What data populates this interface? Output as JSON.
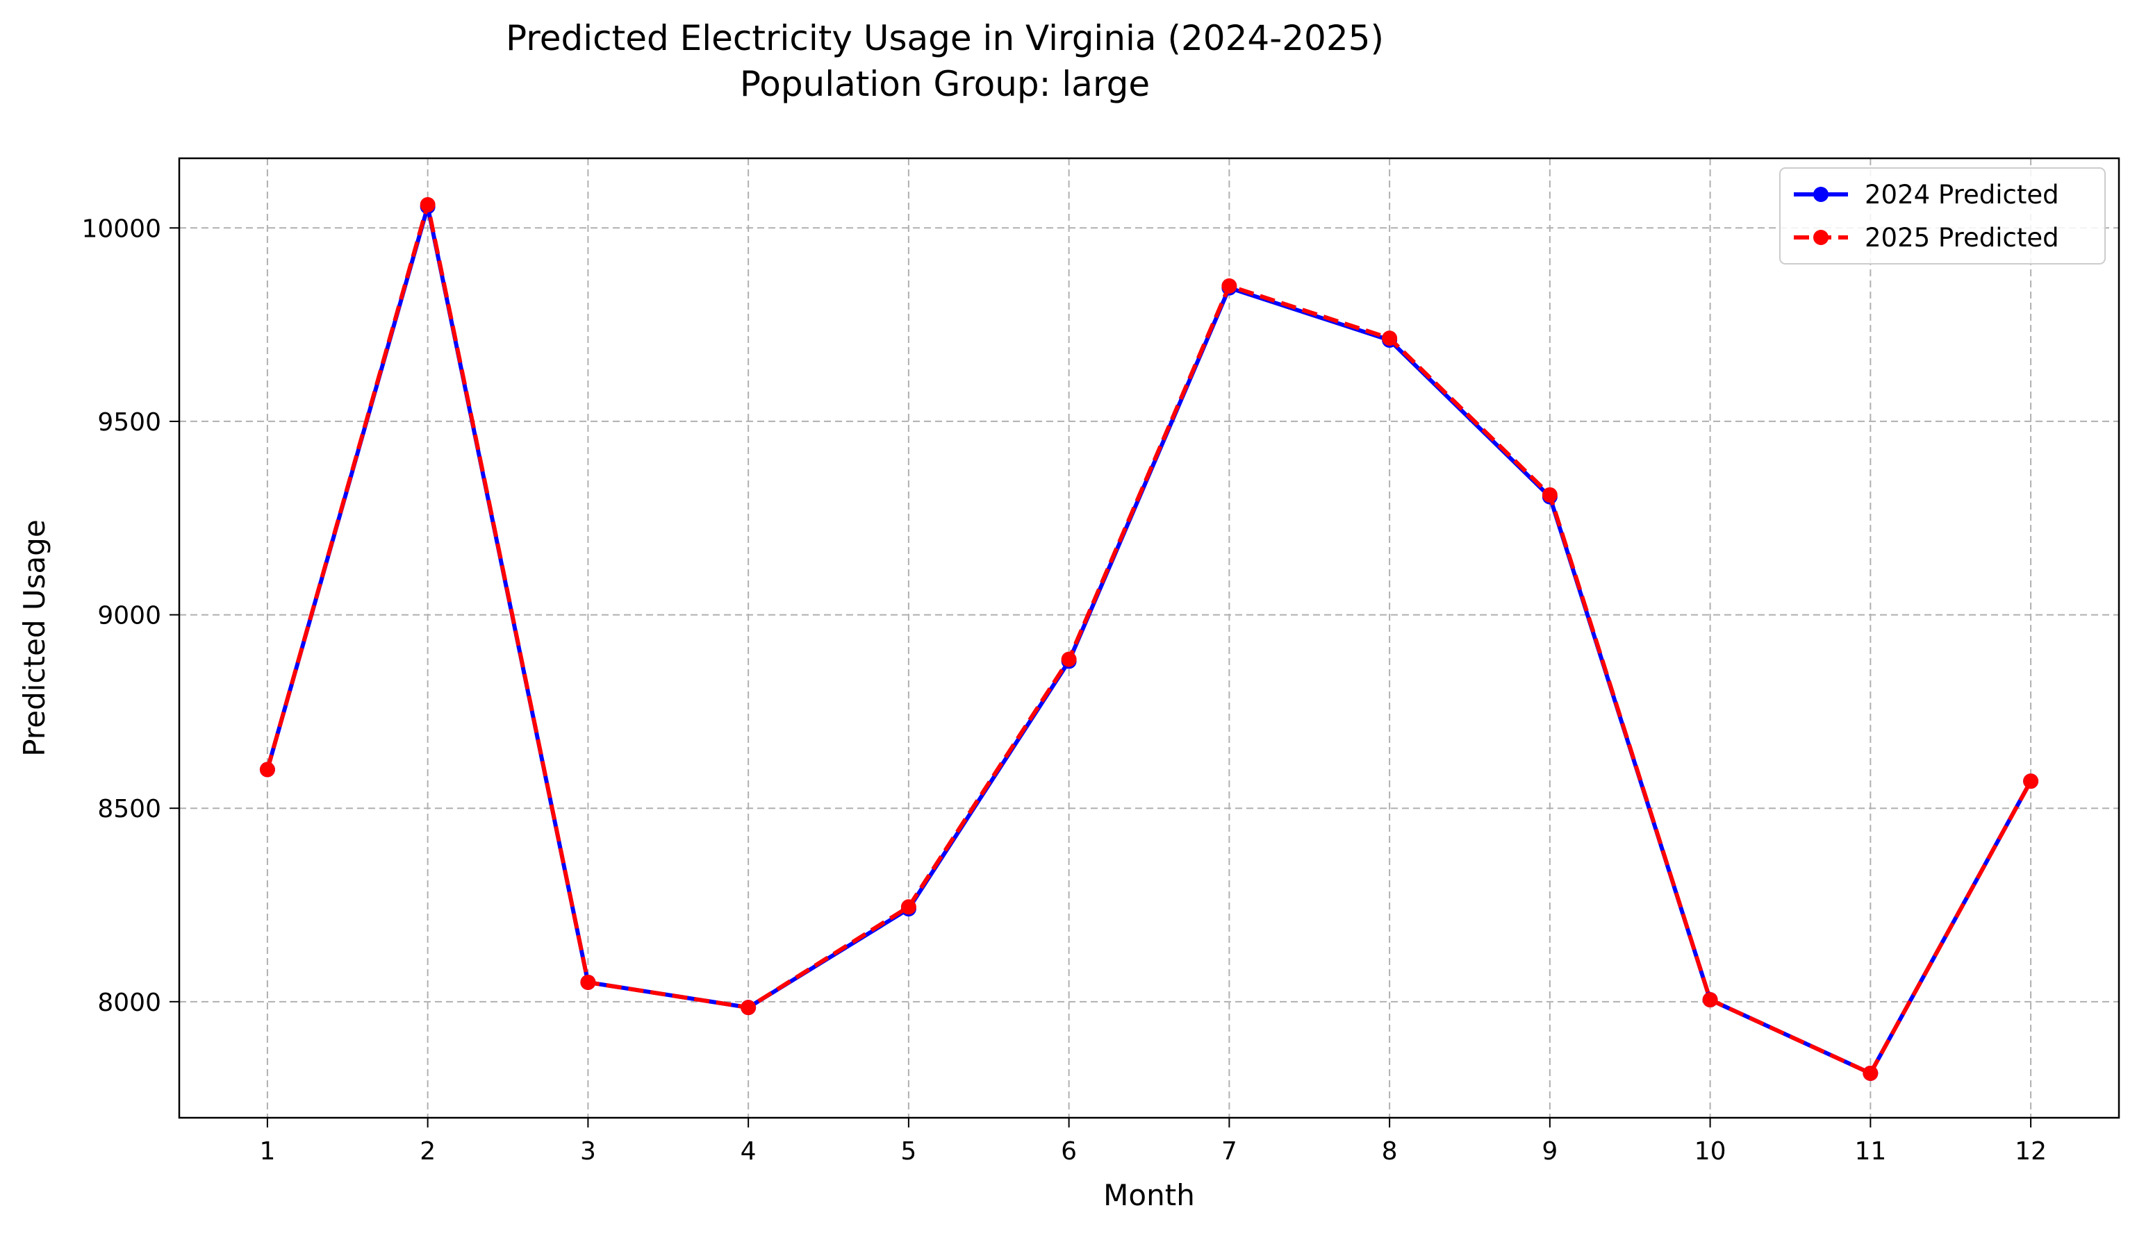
{
  "chart_data": {
    "type": "line",
    "title": "Predicted Electricity Usage in Virginia (2024-2025)",
    "subtitle": "Population Group: large",
    "xlabel": "Month",
    "ylabel": "Predicted Usage",
    "x": [
      1,
      2,
      3,
      4,
      5,
      6,
      7,
      8,
      9,
      10,
      11,
      12
    ],
    "xlim": [
      0.45,
      12.55
    ],
    "ylim": [
      7700,
      10180
    ],
    "yticks": [
      8000,
      8500,
      9000,
      9500,
      10000
    ],
    "grid": true,
    "legend_position": "top-right",
    "series": [
      {
        "name": "2024 Predicted",
        "color": "#0000ff",
        "linestyle": "solid",
        "marker": "circle",
        "values": [
          8600,
          10055,
          8050,
          7985,
          8240,
          8880,
          9845,
          9710,
          9305,
          8005,
          7815,
          8570
        ]
      },
      {
        "name": "2025 Predicted",
        "color": "#ff0000",
        "linestyle": "dashed",
        "marker": "circle",
        "values": [
          8600,
          10060,
          8050,
          7985,
          8245,
          8885,
          9850,
          9715,
          9310,
          8005,
          7815,
          8570
        ]
      }
    ]
  }
}
